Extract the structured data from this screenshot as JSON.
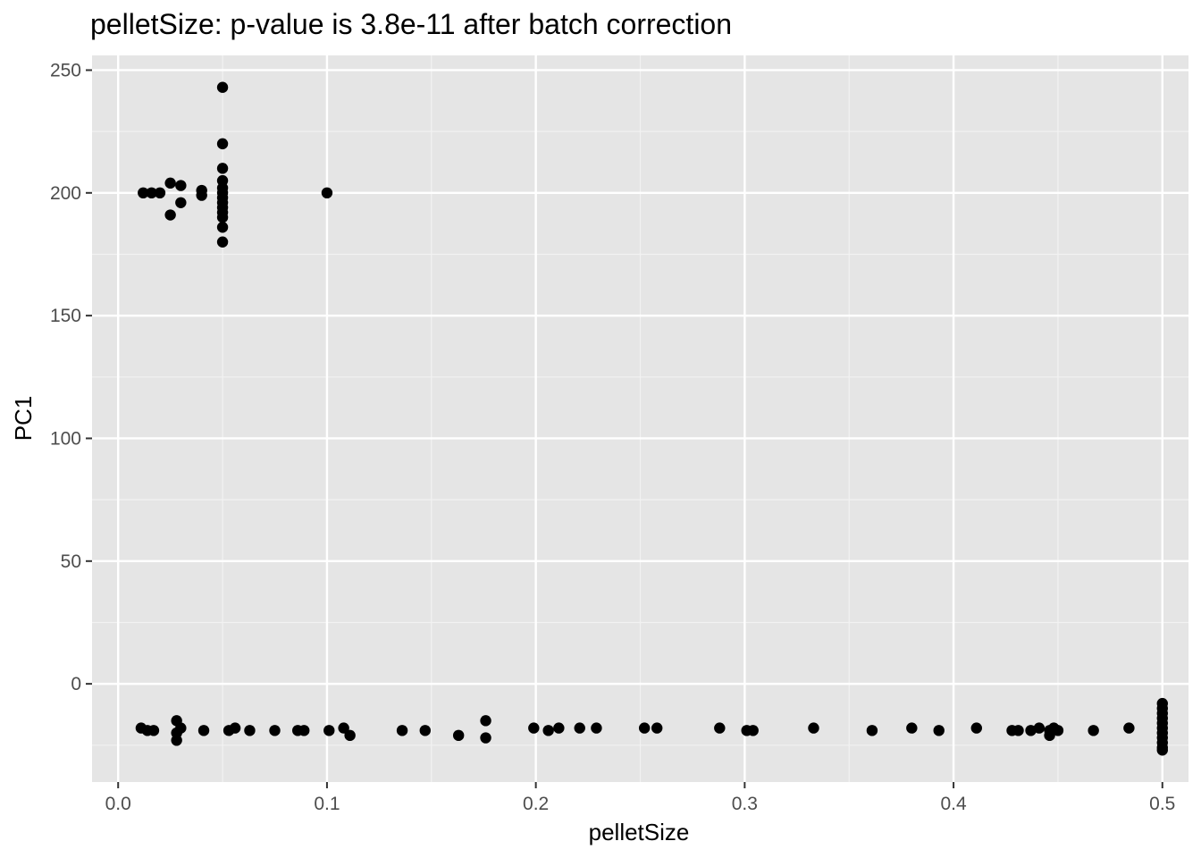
{
  "chart_data": {
    "type": "scatter",
    "title": "pelletSize: p-value is 3.8e-11 after batch correction",
    "xlabel": "pelletSize",
    "ylabel": "PC1",
    "xlim": [
      -0.0125,
      0.5125
    ],
    "ylim": [
      -40,
      256
    ],
    "x_ticks": [
      0.0,
      0.1,
      0.2,
      0.3,
      0.4,
      0.5
    ],
    "x_tick_labels": [
      "0.0",
      "0.1",
      "0.2",
      "0.3",
      "0.4",
      "0.5"
    ],
    "y_ticks": [
      0,
      50,
      100,
      150,
      200,
      250
    ],
    "y_tick_labels": [
      "0",
      "50",
      "100",
      "150",
      "200",
      "250"
    ],
    "grid": true,
    "legend": "none",
    "colors": {
      "panel_background": "#e5e5e5",
      "grid_major": "#ffffff",
      "grid_minor": "#f2f2f2",
      "tick": "#333333",
      "points": "#000000"
    },
    "series": [
      {
        "points": [
          [
            0.05,
            243
          ],
          [
            0.05,
            220
          ],
          [
            0.05,
            210
          ],
          [
            0.05,
            205
          ],
          [
            0.05,
            202
          ],
          [
            0.05,
            200
          ],
          [
            0.05,
            198
          ],
          [
            0.05,
            196
          ],
          [
            0.05,
            194
          ],
          [
            0.05,
            192
          ],
          [
            0.05,
            190
          ],
          [
            0.05,
            186
          ],
          [
            0.05,
            180
          ],
          [
            0.012,
            200
          ],
          [
            0.016,
            200
          ],
          [
            0.02,
            200
          ],
          [
            0.025,
            204
          ],
          [
            0.025,
            191
          ],
          [
            0.03,
            203
          ],
          [
            0.03,
            196
          ],
          [
            0.04,
            201
          ],
          [
            0.04,
            199
          ],
          [
            0.1,
            200
          ],
          [
            0.011,
            -18
          ],
          [
            0.014,
            -19
          ],
          [
            0.017,
            -19
          ],
          [
            0.028,
            -15
          ],
          [
            0.028,
            -20
          ],
          [
            0.028,
            -23
          ],
          [
            0.03,
            -18
          ],
          [
            0.041,
            -19
          ],
          [
            0.053,
            -19
          ],
          [
            0.056,
            -18
          ],
          [
            0.063,
            -19
          ],
          [
            0.075,
            -19
          ],
          [
            0.086,
            -19
          ],
          [
            0.089,
            -19
          ],
          [
            0.101,
            -19
          ],
          [
            0.108,
            -18
          ],
          [
            0.111,
            -21
          ],
          [
            0.136,
            -19
          ],
          [
            0.147,
            -19
          ],
          [
            0.163,
            -21
          ],
          [
            0.176,
            -15
          ],
          [
            0.176,
            -22
          ],
          [
            0.199,
            -18
          ],
          [
            0.206,
            -19
          ],
          [
            0.211,
            -18
          ],
          [
            0.221,
            -18
          ],
          [
            0.229,
            -18
          ],
          [
            0.252,
            -18
          ],
          [
            0.258,
            -18
          ],
          [
            0.288,
            -18
          ],
          [
            0.301,
            -19
          ],
          [
            0.304,
            -19
          ],
          [
            0.333,
            -18
          ],
          [
            0.361,
            -19
          ],
          [
            0.38,
            -18
          ],
          [
            0.393,
            -19
          ],
          [
            0.411,
            -18
          ],
          [
            0.428,
            -19
          ],
          [
            0.431,
            -19
          ],
          [
            0.437,
            -19
          ],
          [
            0.441,
            -18
          ],
          [
            0.446,
            -19
          ],
          [
            0.446,
            -21
          ],
          [
            0.448,
            -18
          ],
          [
            0.45,
            -19
          ],
          [
            0.467,
            -19
          ],
          [
            0.484,
            -18
          ],
          [
            0.5,
            -8
          ],
          [
            0.5,
            -10
          ],
          [
            0.5,
            -12
          ],
          [
            0.5,
            -14
          ],
          [
            0.5,
            -16
          ],
          [
            0.5,
            -18
          ],
          [
            0.5,
            -20
          ],
          [
            0.5,
            -22
          ],
          [
            0.5,
            -24
          ],
          [
            0.5,
            -26
          ],
          [
            0.5,
            -27
          ]
        ]
      }
    ]
  }
}
